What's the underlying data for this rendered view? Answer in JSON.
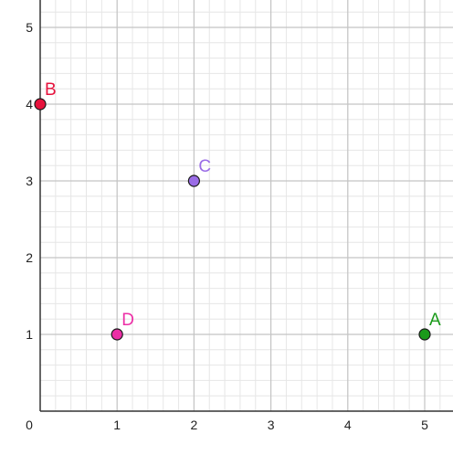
{
  "chart_data": {
    "type": "scatter",
    "title": "",
    "xlabel": "",
    "ylabel": "",
    "xlim": [
      0,
      5.4
    ],
    "ylim": [
      0,
      5.35
    ],
    "grid": true,
    "minor_grid_step": 0.2,
    "x_ticks": [
      "0",
      "1",
      "2",
      "3",
      "4",
      "5"
    ],
    "y_ticks": [
      "1",
      "2",
      "3",
      "4",
      "5"
    ],
    "points": [
      {
        "label": "A",
        "x": 5,
        "y": 1,
        "color": "#1a9a1a"
      },
      {
        "label": "B",
        "x": 0,
        "y": 4,
        "color": "#e6123c"
      },
      {
        "label": "C",
        "x": 2,
        "y": 3,
        "color": "#9a6ce6"
      },
      {
        "label": "D",
        "x": 1,
        "y": 1,
        "color": "#ec2fa6"
      }
    ]
  }
}
